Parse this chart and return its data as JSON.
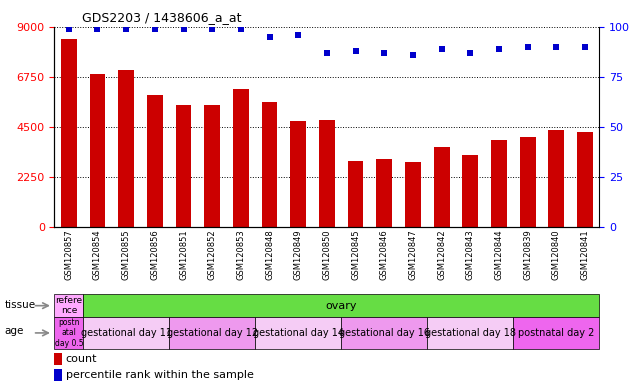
{
  "title": "GDS2203 / 1438606_a_at",
  "samples": [
    "GSM120857",
    "GSM120854",
    "GSM120855",
    "GSM120856",
    "GSM120851",
    "GSM120852",
    "GSM120853",
    "GSM120848",
    "GSM120849",
    "GSM120850",
    "GSM120845",
    "GSM120846",
    "GSM120847",
    "GSM120842",
    "GSM120843",
    "GSM120844",
    "GSM120839",
    "GSM120840",
    "GSM120841"
  ],
  "counts": [
    8450,
    6900,
    7050,
    5950,
    5500,
    5500,
    6200,
    5600,
    4750,
    4800,
    2950,
    3050,
    2900,
    3600,
    3250,
    3900,
    4050,
    4350,
    4250
  ],
  "percentiles": [
    99,
    99,
    99,
    99,
    99,
    99,
    99,
    95,
    96,
    87,
    88,
    87,
    86,
    89,
    87,
    89,
    90,
    90,
    90
  ],
  "bar_color": "#cc0000",
  "dot_color": "#0000cc",
  "ylim_left": [
    0,
    9000
  ],
  "ylim_right": [
    0,
    100
  ],
  "yticks_left": [
    0,
    2250,
    4500,
    6750,
    9000
  ],
  "yticks_right": [
    0,
    25,
    50,
    75,
    100
  ],
  "tissue_row": {
    "label": "tissue",
    "segments": [
      {
        "text": "refere\nnce",
        "color": "#ffaaff",
        "span": 1
      },
      {
        "text": "ovary",
        "color": "#66dd44",
        "span": 18
      }
    ]
  },
  "age_row": {
    "label": "age",
    "segments": [
      {
        "text": "postn\natal\nday 0.5",
        "color": "#ee66ee",
        "span": 1
      },
      {
        "text": "gestational day 11",
        "color": "#f5ccf5",
        "span": 3
      },
      {
        "text": "gestational day 12",
        "color": "#ee99ee",
        "span": 3
      },
      {
        "text": "gestational day 14",
        "color": "#f5ccf5",
        "span": 3
      },
      {
        "text": "gestational day 16",
        "color": "#ee99ee",
        "span": 3
      },
      {
        "text": "gestational day 18",
        "color": "#f5ccf5",
        "span": 3
      },
      {
        "text": "postnatal day 2",
        "color": "#ee66ee",
        "span": 3
      }
    ]
  },
  "background_color": "#ffffff",
  "plot_bg": "#ffffff",
  "grid_color": "#000000"
}
